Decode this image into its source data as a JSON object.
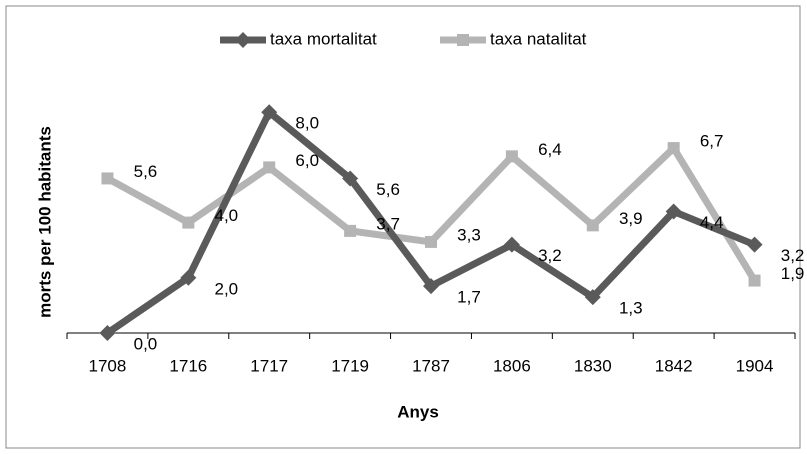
{
  "chart_data": {
    "type": "line",
    "x_label": "Anys",
    "y_label": "morts per 100 habitants",
    "categories": [
      "1708",
      "1716",
      "1717",
      "1719",
      "1787",
      "1806",
      "1830",
      "1842",
      "1904"
    ],
    "series": [
      {
        "name": "taxa mortalitat",
        "color": "#5a5a5a",
        "marker": "diamond",
        "values": [
          0.0,
          2.0,
          8.0,
          5.6,
          1.7,
          3.2,
          1.3,
          4.4,
          3.2
        ],
        "value_labels": [
          "0,0",
          "2,0",
          "8,0",
          "5,6",
          "1,7",
          "3,2",
          "1,3",
          "4,4",
          "3,2"
        ]
      },
      {
        "name": "taxa natalitat",
        "color": "#b4b4b4",
        "marker": "square",
        "values": [
          5.6,
          4.0,
          6.0,
          3.7,
          3.3,
          6.4,
          3.9,
          6.7,
          1.9
        ],
        "value_labels": [
          "5,6",
          "4,0",
          "6,0",
          "3,7",
          "3,3",
          "6,4",
          "3,9",
          "6,7",
          "1,9"
        ]
      }
    ],
    "legend": "top"
  }
}
